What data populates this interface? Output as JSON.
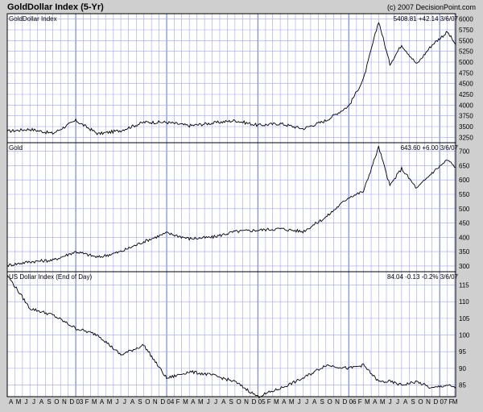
{
  "chart_title": "GoldDollar Index (5-Yr)",
  "credit": "(c) 2007 DecisionPoint.com",
  "chart_data": [
    {
      "type": "line",
      "title": "GoldDollar Index",
      "readout": {
        "value": "5408.81",
        "change": "+42.14",
        "pct": "",
        "date": "3/6/07"
      },
      "y_ticks": [
        3250,
        3500,
        3750,
        4000,
        4250,
        4500,
        4750,
        5000,
        5250,
        5500,
        5750,
        6000
      ],
      "ylim": [
        3125,
        6125
      ],
      "x": [
        "2002-04-01",
        "2002-07-01",
        "2002-10-01",
        "2003-01-01",
        "2003-04-01",
        "2003-07-01",
        "2003-10-01",
        "2004-01-01",
        "2004-04-01",
        "2004-07-01",
        "2004-10-01",
        "2005-01-01",
        "2005-04-01",
        "2005-07-01",
        "2005-10-01",
        "2006-01-01",
        "2006-03-01",
        "2006-05-01",
        "2006-06-15",
        "2006-08-01",
        "2006-10-01",
        "2006-12-01",
        "2007-02-01",
        "2007-03-06"
      ],
      "values": [
        3390,
        3440,
        3340,
        3640,
        3330,
        3410,
        3600,
        3600,
        3520,
        3580,
        3640,
        3530,
        3570,
        3450,
        3640,
        3980,
        4600,
        5950,
        4950,
        5400,
        4950,
        5400,
        5700,
        5409
      ]
    },
    {
      "type": "line",
      "title": "Gold",
      "readout": {
        "value": "643.60",
        "change": "+6.00",
        "pct": "",
        "date": "3/6/07"
      },
      "y_ticks": [
        300,
        350,
        400,
        450,
        500,
        550,
        600,
        650,
        700
      ],
      "ylim": [
        280,
        730
      ],
      "x": [
        "2002-04-01",
        "2002-07-01",
        "2002-10-01",
        "2003-01-01",
        "2003-04-01",
        "2003-07-01",
        "2003-10-01",
        "2004-01-01",
        "2004-04-01",
        "2004-07-01",
        "2004-10-01",
        "2005-01-01",
        "2005-04-01",
        "2005-07-01",
        "2005-10-01",
        "2006-01-01",
        "2006-03-01",
        "2006-05-01",
        "2006-06-15",
        "2006-08-01",
        "2006-10-01",
        "2006-12-01",
        "2007-02-01",
        "2007-03-06"
      ],
      "values": [
        302,
        315,
        320,
        350,
        330,
        350,
        385,
        415,
        395,
        400,
        420,
        425,
        430,
        420,
        470,
        540,
        560,
        715,
        580,
        640,
        570,
        625,
        670,
        644
      ]
    },
    {
      "type": "line",
      "title": "US Dollar Index (End of Day)",
      "readout": {
        "value": "84.04",
        "change": "-0.13",
        "pct": "-0.2%",
        "date": "3/6/07"
      },
      "y_ticks": [
        85,
        90,
        95,
        100,
        105,
        110,
        115
      ],
      "ylim": [
        81.5,
        119
      ],
      "x": [
        "2002-04-01",
        "2002-07-01",
        "2002-10-01",
        "2003-01-01",
        "2003-04-01",
        "2003-07-01",
        "2003-10-01",
        "2004-01-01",
        "2004-04-01",
        "2004-07-01",
        "2004-10-01",
        "2005-01-01",
        "2005-04-01",
        "2005-07-01",
        "2005-10-01",
        "2006-01-01",
        "2006-03-01",
        "2006-05-01",
        "2006-06-15",
        "2006-08-01",
        "2006-10-01",
        "2006-12-01",
        "2007-02-01",
        "2007-03-06"
      ],
      "values": [
        118,
        108,
        106,
        102,
        100,
        94,
        97,
        87,
        89,
        88,
        86,
        81.5,
        84,
        87,
        91,
        90,
        91,
        86,
        86,
        85,
        86,
        84,
        85,
        84
      ]
    }
  ],
  "x_axis": {
    "labels": [
      "A",
      "M",
      "J",
      "J",
      "A",
      "S",
      "O",
      "N",
      "D",
      "03",
      "F",
      "M",
      "A",
      "M",
      "J",
      "J",
      "A",
      "S",
      "O",
      "N",
      "D",
      "04",
      "F",
      "M",
      "A",
      "M",
      "J",
      "J",
      "A",
      "S",
      "O",
      "N",
      "D",
      "05",
      "F",
      "M",
      "A",
      "M",
      "J",
      "J",
      "A",
      "S",
      "O",
      "N",
      "D",
      "06",
      "F",
      "M",
      "A",
      "M",
      "J",
      "J",
      "A",
      "S",
      "O",
      "N",
      "D",
      "07",
      "F",
      "M"
    ],
    "year_labels": [
      "03",
      "04",
      "05",
      "06",
      "07"
    ],
    "year_starts": [
      "2003-01-01",
      "2004-01-01",
      "2005-01-01",
      "2006-01-01",
      "2007-01-01"
    ],
    "start": "2002-04-01",
    "end": "2007-03-06"
  },
  "colors": {
    "background": "#cfcfcf",
    "plot_bg": "#ffffff",
    "grid": "#9aa3ff",
    "year_line": "#606dd8",
    "line": "#000000"
  }
}
